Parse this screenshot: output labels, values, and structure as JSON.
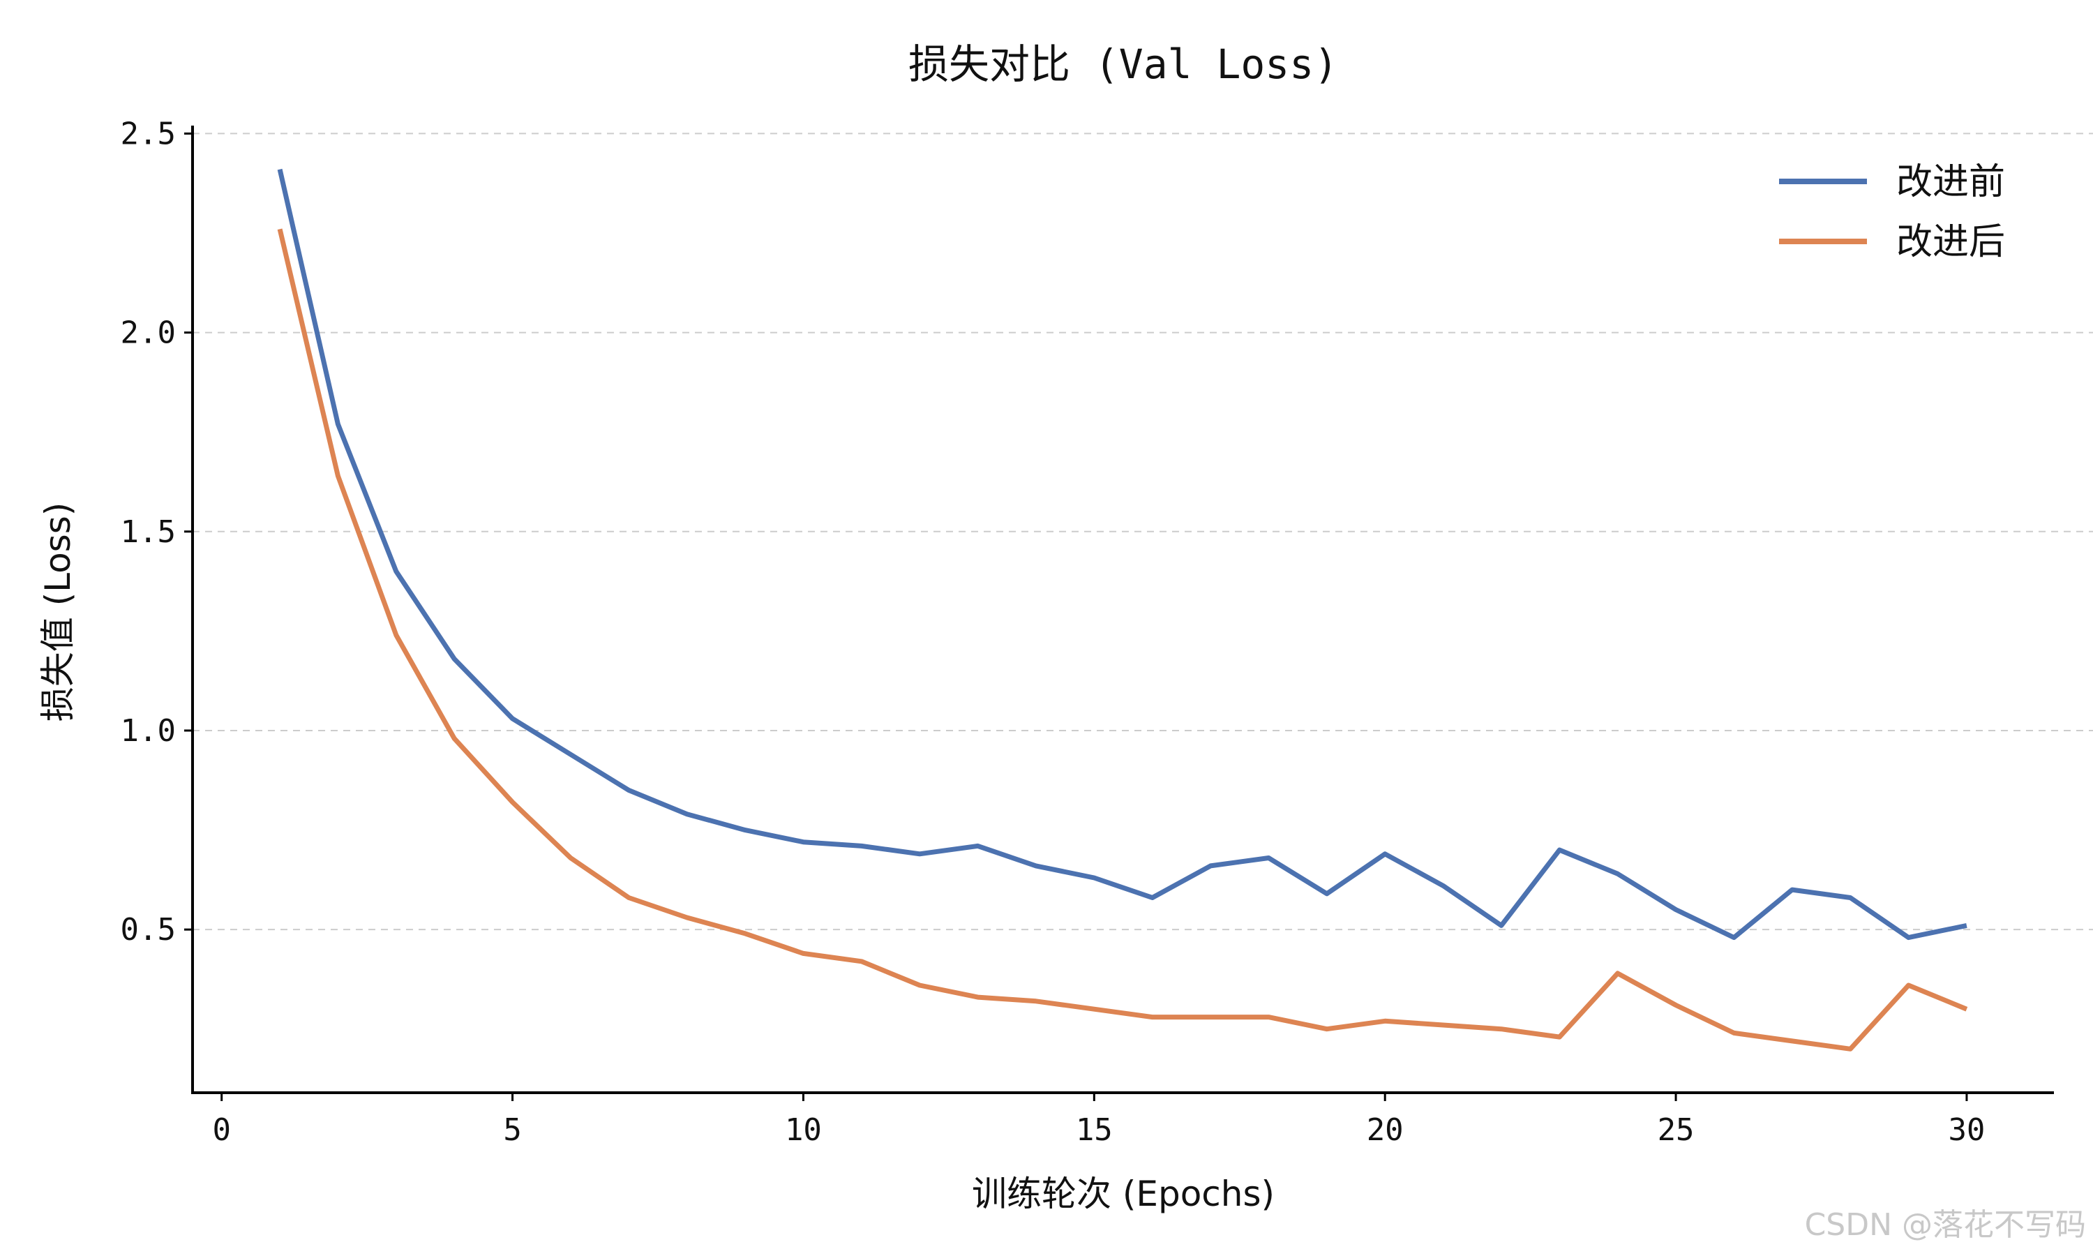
{
  "chart_data": {
    "type": "line",
    "title": "损失对比 (Val Loss)",
    "xlabel": "训练轮次 (Epochs)",
    "ylabel": "损失值 (Loss)",
    "xlim": [
      -0.5,
      31.5
    ],
    "ylim": [
      0.09,
      2.52
    ],
    "x_ticks": [
      0,
      5,
      10,
      15,
      20,
      25,
      30
    ],
    "x_tick_labels": [
      "0",
      "5",
      "10",
      "15",
      "20",
      "25",
      "30"
    ],
    "y_ticks": [
      0.5,
      1.0,
      1.5,
      2.0,
      2.5
    ],
    "y_tick_labels": [
      "0.5",
      "1.0",
      "1.5",
      "2.0",
      "2.5"
    ],
    "grid": "y-dashed",
    "legend_position": "top-right",
    "x": [
      1,
      2,
      3,
      4,
      5,
      6,
      7,
      8,
      9,
      10,
      11,
      12,
      13,
      14,
      15,
      16,
      17,
      18,
      19,
      20,
      21,
      22,
      23,
      24,
      25,
      26,
      27,
      28,
      29,
      30
    ],
    "series": [
      {
        "name": "改进前",
        "color": "#4c72b0",
        "values": [
          2.41,
          1.77,
          1.4,
          1.18,
          1.03,
          0.94,
          0.85,
          0.79,
          0.75,
          0.72,
          0.71,
          0.69,
          0.71,
          0.66,
          0.63,
          0.58,
          0.66,
          0.68,
          0.59,
          0.69,
          0.61,
          0.51,
          0.7,
          0.64,
          0.55,
          0.48,
          0.6,
          0.58,
          0.48,
          0.51
        ]
      },
      {
        "name": "改进后",
        "color": "#dd8452",
        "values": [
          2.26,
          1.64,
          1.24,
          0.98,
          0.82,
          0.68,
          0.58,
          0.53,
          0.49,
          0.44,
          0.42,
          0.36,
          0.33,
          0.32,
          0.3,
          0.28,
          0.28,
          0.28,
          0.25,
          0.27,
          0.26,
          0.25,
          0.23,
          0.39,
          0.31,
          0.24,
          0.22,
          0.2,
          0.36,
          0.3
        ]
      }
    ]
  },
  "watermark": "CSDN @落花不写码"
}
